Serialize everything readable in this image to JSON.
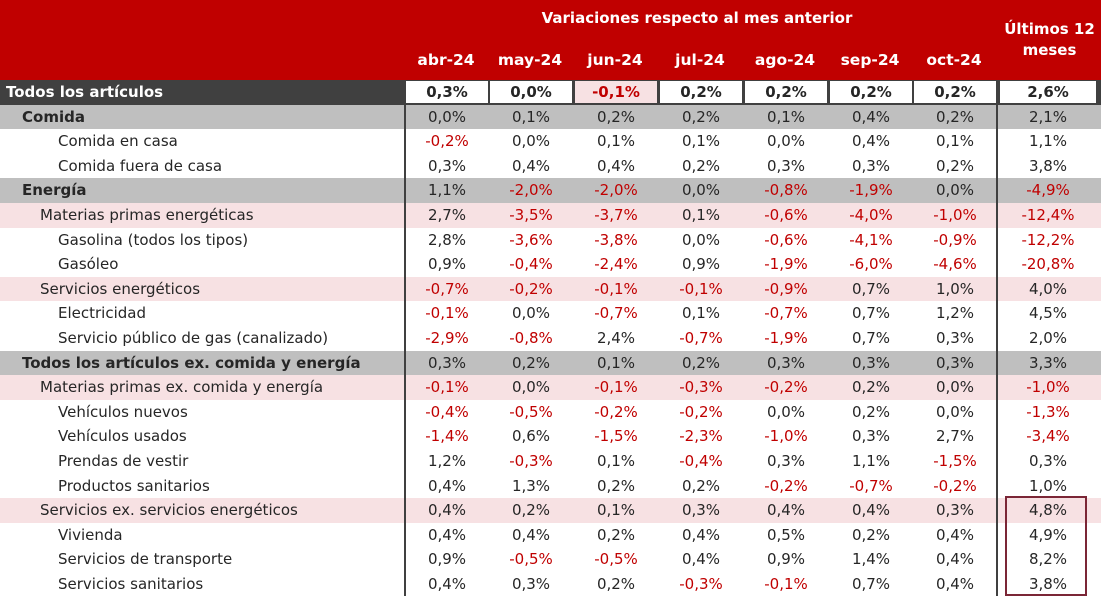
{
  "header": {
    "group_title": "Variaciones respecto al mes anterior",
    "months": [
      "abr-24",
      "may-24",
      "jun-24",
      "jul-24",
      "ago-24",
      "sep-24",
      "oct-24"
    ],
    "last12_line1": "Últimos 12",
    "last12_line2": "meses"
  },
  "rows": [
    {
      "label": "Todos los artículos",
      "values": [
        "0,3%",
        "0,0%",
        "-0,1%",
        "0,2%",
        "0,2%",
        "0,2%",
        "0,2%"
      ],
      "last12": "2,6%"
    },
    {
      "label": "Comida",
      "values": [
        "0,0%",
        "0,1%",
        "0,2%",
        "0,2%",
        "0,1%",
        "0,4%",
        "0,2%"
      ],
      "last12": "2,1%"
    },
    {
      "label": "Comida en casa",
      "values": [
        "-0,2%",
        "0,0%",
        "0,1%",
        "0,1%",
        "0,0%",
        "0,4%",
        "0,1%"
      ],
      "last12": "1,1%"
    },
    {
      "label": "Comida fuera de casa",
      "values": [
        "0,3%",
        "0,4%",
        "0,4%",
        "0,2%",
        "0,3%",
        "0,3%",
        "0,2%"
      ],
      "last12": "3,8%"
    },
    {
      "label": "Energía",
      "values": [
        "1,1%",
        "-2,0%",
        "-2,0%",
        "0,0%",
        "-0,8%",
        "-1,9%",
        "0,0%"
      ],
      "last12": "-4,9%"
    },
    {
      "label": "Materias primas energéticas",
      "values": [
        "2,7%",
        "-3,5%",
        "-3,7%",
        "0,1%",
        "-0,6%",
        "-4,0%",
        "-1,0%"
      ],
      "last12": "-12,4%"
    },
    {
      "label": "Gasolina (todos los tipos)",
      "values": [
        "2,8%",
        "-3,6%",
        "-3,8%",
        "0,0%",
        "-0,6%",
        "-4,1%",
        "-0,9%"
      ],
      "last12": "-12,2%"
    },
    {
      "label": "Gasóleo",
      "values": [
        "0,9%",
        "-0,4%",
        "-2,4%",
        "0,9%",
        "-1,9%",
        "-6,0%",
        "-4,6%"
      ],
      "last12": "-20,8%"
    },
    {
      "label": "Servicios energéticos",
      "values": [
        "-0,7%",
        "-0,2%",
        "-0,1%",
        "-0,1%",
        "-0,9%",
        "0,7%",
        "1,0%"
      ],
      "last12": "4,0%"
    },
    {
      "label": "Electricidad",
      "values": [
        "-0,1%",
        "0,0%",
        "-0,7%",
        "0,1%",
        "-0,7%",
        "0,7%",
        "1,2%"
      ],
      "last12": "4,5%"
    },
    {
      "label": "Servicio público de gas (canalizado)",
      "values": [
        "-2,9%",
        "-0,8%",
        "2,4%",
        "-0,7%",
        "-1,9%",
        "0,7%",
        "0,3%"
      ],
      "last12": "2,0%"
    },
    {
      "label": "Todos los artículos ex. comida y energía",
      "values": [
        "0,3%",
        "0,2%",
        "0,1%",
        "0,2%",
        "0,3%",
        "0,3%",
        "0,3%"
      ],
      "last12": "3,3%"
    },
    {
      "label": "Materias primas ex. comida y energía",
      "values": [
        "-0,1%",
        "0,0%",
        "-0,1%",
        "-0,3%",
        "-0,2%",
        "0,2%",
        "0,0%"
      ],
      "last12": "-1,0%"
    },
    {
      "label": "Vehículos nuevos",
      "values": [
        "-0,4%",
        "-0,5%",
        "-0,2%",
        "-0,2%",
        "0,0%",
        "0,2%",
        "0,0%"
      ],
      "last12": "-1,3%"
    },
    {
      "label": "Vehículos usados",
      "values": [
        "-1,4%",
        "0,6%",
        "-1,5%",
        "-2,3%",
        "-1,0%",
        "0,3%",
        "2,7%"
      ],
      "last12": "-3,4%"
    },
    {
      "label": "Prendas de vestir",
      "values": [
        "1,2%",
        "-0,3%",
        "0,1%",
        "-0,4%",
        "0,3%",
        "1,1%",
        "-1,5%"
      ],
      "last12": "0,3%"
    },
    {
      "label": "Productos sanitarios",
      "values": [
        "0,4%",
        "1,3%",
        "0,2%",
        "0,2%",
        "-0,2%",
        "-0,7%",
        "-0,2%"
      ],
      "last12": "1,0%"
    },
    {
      "label": "Servicios ex. servicios energéticos",
      "values": [
        "0,4%",
        "0,2%",
        "0,1%",
        "0,3%",
        "0,4%",
        "0,4%",
        "0,3%"
      ],
      "last12": "4,8%"
    },
    {
      "label": "Vivienda",
      "values": [
        "0,4%",
        "0,4%",
        "0,2%",
        "0,4%",
        "0,5%",
        "0,2%",
        "0,4%"
      ],
      "last12": "4,9%"
    },
    {
      "label": "Servicios de transporte",
      "values": [
        "0,9%",
        "-0,5%",
        "-0,5%",
        "0,4%",
        "0,9%",
        "1,4%",
        "0,4%"
      ],
      "last12": "8,2%"
    },
    {
      "label": "Servicios sanitarios",
      "values": [
        "0,4%",
        "0,3%",
        "0,2%",
        "-0,3%",
        "-0,1%",
        "0,7%",
        "0,4%"
      ],
      "last12": "3,8%"
    }
  ],
  "colors": {
    "header_bg": "#c00000",
    "negative_text": "#c00000",
    "category_bg": "#bfbfbf",
    "subcategory_bg": "#f7e1e3",
    "top_row_bg": "#404040",
    "highlight_border": "#7b2636"
  }
}
